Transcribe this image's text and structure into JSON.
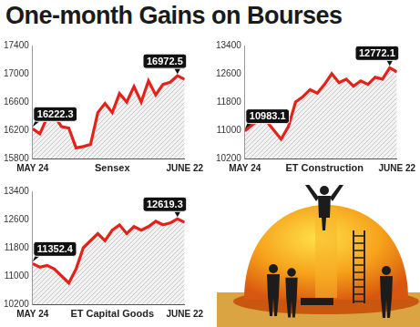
{
  "title": "One-month Gains on Bourses",
  "chart_data": [
    {
      "type": "line",
      "title": "Sensex",
      "categories": [
        "MAY 24",
        null,
        null,
        null,
        null,
        null,
        null,
        null,
        null,
        null,
        null,
        null,
        null,
        null,
        null,
        null,
        null,
        null,
        null,
        null,
        null,
        "JUNE 22"
      ],
      "values": [
        16222.3,
        16150,
        16380,
        16400,
        16250,
        16230,
        15950,
        15970,
        16000,
        16450,
        16580,
        16450,
        16720,
        16600,
        16820,
        16600,
        16900,
        16700,
        16850,
        16880,
        16972.5,
        16920
      ],
      "value_labels": [
        "16222.3",
        null,
        null,
        null,
        null,
        null,
        null,
        null,
        null,
        null,
        null,
        null,
        null,
        null,
        null,
        null,
        null,
        null,
        null,
        null,
        "16972.5",
        null
      ],
      "color": "#e3231b",
      "ylim": [
        15800,
        17400
      ],
      "yticks": [
        15800,
        16200,
        16600,
        17000,
        17400
      ],
      "grid": false
    },
    {
      "type": "line",
      "title": "ET Construction",
      "categories": [
        "MAY 24",
        null,
        null,
        null,
        null,
        null,
        null,
        null,
        null,
        null,
        null,
        null,
        null,
        null,
        null,
        null,
        null,
        null,
        null,
        null,
        null,
        "JUNE 22"
      ],
      "values": [
        10983.1,
        11150,
        11300,
        11250,
        11000,
        10750,
        11100,
        11800,
        11950,
        12150,
        12050,
        12300,
        12600,
        12350,
        12450,
        12250,
        12400,
        12300,
        12500,
        12450,
        12772.1,
        12650
      ],
      "value_labels": [
        "10983.1",
        null,
        null,
        null,
        null,
        null,
        null,
        null,
        null,
        null,
        null,
        null,
        null,
        null,
        null,
        null,
        null,
        null,
        null,
        null,
        "12772.1",
        null
      ],
      "color": "#e3231b",
      "ylim": [
        10200,
        13400
      ],
      "yticks": [
        10200,
        11000,
        11800,
        12600,
        13400
      ],
      "grid": false
    },
    {
      "type": "line",
      "title": "ET Capital Goods",
      "categories": [
        "MAY 24",
        null,
        null,
        null,
        null,
        null,
        null,
        null,
        null,
        null,
        null,
        null,
        null,
        null,
        null,
        null,
        null,
        null,
        null,
        null,
        null,
        "JUNE 22"
      ],
      "values": [
        11352.4,
        11250,
        11300,
        11200,
        11000,
        10800,
        11200,
        11800,
        12000,
        12200,
        12000,
        12300,
        12450,
        12200,
        12400,
        12300,
        12400,
        12550,
        12450,
        12500,
        12619.3,
        12520
      ],
      "value_labels": [
        "11352.4",
        null,
        null,
        null,
        null,
        null,
        null,
        null,
        null,
        null,
        null,
        null,
        null,
        null,
        null,
        null,
        null,
        null,
        null,
        null,
        "12619.3",
        null
      ],
      "color": "#e3231b",
      "ylim": [
        10200,
        13400
      ],
      "yticks": [
        10200,
        11000,
        11800,
        12600,
        13400
      ],
      "grid": false
    }
  ]
}
